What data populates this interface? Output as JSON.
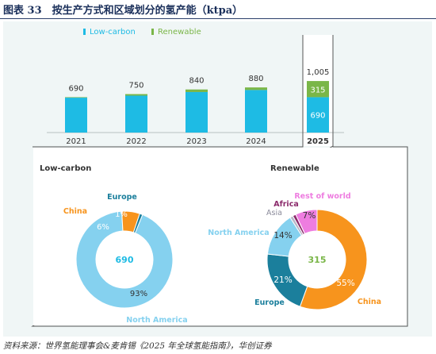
{
  "header": {
    "title": "图表 33　按生产方式和区域划分的氢产能（ktpa）"
  },
  "footer": {
    "source": "资料来源：世界氢能理事会&麦肯锡《2025 年全球氢能指南》，华创证券"
  },
  "colors": {
    "low_carbon": "#1ebbe4",
    "renewable": "#7ab648",
    "china": "#f7941d",
    "europe": "#1b7f9c",
    "north_america": "#85d1ef",
    "asia_europe_small": "#1b7f9c",
    "africa": "#8b2a6b",
    "asia": "#b8b8c8",
    "rest_of_world": "#ee7de0",
    "panel_bg": "#f0f6f6"
  },
  "chart_data": [
    {
      "type": "bar",
      "title": "",
      "legend_position": "top-center",
      "categories": [
        "2021",
        "2022",
        "2023",
        "2024",
        "2025"
      ],
      "highlight_category": "2025",
      "series": [
        {
          "name": "Low-carbon",
          "values": [
            680,
            720,
            790,
            830,
            690
          ]
        },
        {
          "name": "Renewable",
          "values": [
            10,
            30,
            50,
            50,
            315
          ]
        }
      ],
      "totals": [
        "690",
        "750",
        "840",
        "880",
        "1,005"
      ],
      "segment_labels_2025": {
        "Low-carbon": "690",
        "Renewable": "315"
      }
    },
    {
      "type": "pie",
      "subtype": "donut",
      "title": "Low-carbon",
      "center_label": "690",
      "slices": [
        {
          "name": "North America",
          "value": 93,
          "label": "93%"
        },
        {
          "name": "China",
          "value": 6,
          "label": "6%"
        },
        {
          "name": "Europe",
          "value": 1,
          "label": "1%"
        }
      ]
    },
    {
      "type": "pie",
      "subtype": "donut",
      "title": "Renewable",
      "center_label": "315",
      "slices": [
        {
          "name": "China",
          "value": 55,
          "label": "55%"
        },
        {
          "name": "Europe",
          "value": 21,
          "label": "21%"
        },
        {
          "name": "North America",
          "value": 14,
          "label": "14%"
        },
        {
          "name": "Asia",
          "value": 1,
          "label": ""
        },
        {
          "name": "Africa",
          "value": 1,
          "label": ""
        },
        {
          "name": "Rest of world",
          "value": 7,
          "label": "7%"
        }
      ]
    }
  ]
}
